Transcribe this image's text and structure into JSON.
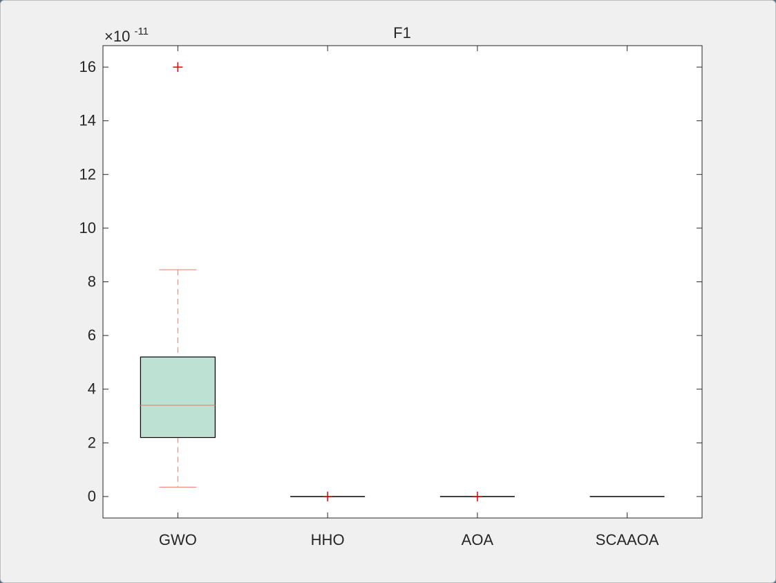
{
  "window": {
    "background": "#f0f0f0"
  },
  "chart_data": {
    "type": "box",
    "title": "F1",
    "xlabel": "",
    "ylabel": "",
    "y_multiplier_base": "×10",
    "y_multiplier_exponent": "-11",
    "ylim": [
      -0.8,
      16.8
    ],
    "yticks": [
      0,
      2,
      4,
      6,
      8,
      10,
      12,
      14,
      16
    ],
    "ytick_labels": [
      "0",
      "2",
      "4",
      "6",
      "8",
      "10",
      "12",
      "14",
      "16"
    ],
    "categories": [
      "GWO",
      "HHO",
      "AOA",
      "SCAAOA"
    ],
    "boxes": [
      {
        "category": "GWO",
        "q1": 2.2,
        "median": 3.4,
        "q3": 5.2,
        "whisker_low": 0.35,
        "whisker_high": 8.45,
        "outliers": [
          16.0
        ]
      },
      {
        "category": "HHO",
        "q1": 0,
        "median": 0,
        "q3": 0,
        "whisker_low": 0,
        "whisker_high": 0,
        "outliers": [
          0
        ]
      },
      {
        "category": "AOA",
        "q1": 0,
        "median": 0,
        "q3": 0,
        "whisker_low": 0,
        "whisker_high": 0,
        "outliers": [
          0
        ]
      },
      {
        "category": "SCAAOA",
        "q1": 0,
        "median": 0,
        "q3": 0,
        "whisker_low": 0,
        "whisker_high": 0,
        "outliers": []
      }
    ],
    "colors": {
      "box_fill": "#bde2d3",
      "box_edge": "#000000",
      "median": "#e8896d",
      "whisker": "#f07a6a",
      "outlier": "#e00000",
      "axis": "#262626"
    },
    "grid": false,
    "legend": "none"
  }
}
